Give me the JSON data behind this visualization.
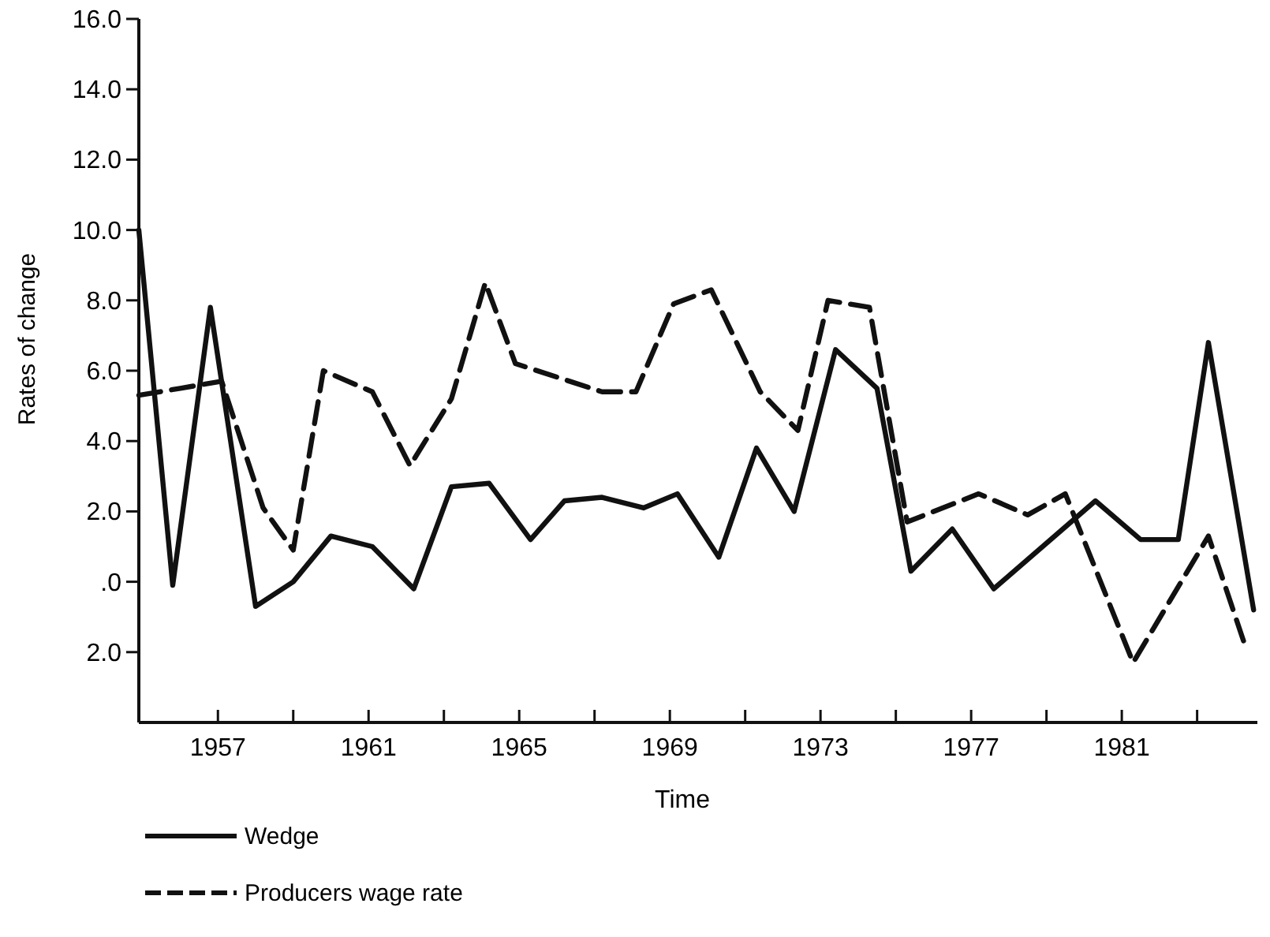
{
  "chart_data": {
    "type": "line",
    "xlabel": "Time",
    "ylabel": "Rates of change",
    "xlim": [
      1954.9,
      1984.6
    ],
    "ylim": [
      -4,
      16
    ],
    "xticks": [
      1957,
      {
        "value": 1959,
        "label": null
      },
      1961,
      {
        "value": 1963,
        "label": null
      },
      1965,
      {
        "value": 1967,
        "label": null
      },
      1969,
      {
        "value": 1971,
        "label": null
      },
      1973,
      {
        "value": 1975,
        "label": null
      },
      1977,
      {
        "value": 1979,
        "label": null
      },
      1981,
      {
        "value": 1983,
        "label": null
      }
    ],
    "yticks": [
      {
        "value": -2,
        "label": "2.0"
      },
      {
        "value": 0,
        "label": ".0"
      },
      {
        "value": 2,
        "label": "2.0"
      },
      {
        "value": 4,
        "label": "4.0"
      },
      {
        "value": 6,
        "label": "6.0"
      },
      {
        "value": 8,
        "label": "8.0"
      },
      {
        "value": 10,
        "label": "10.0"
      },
      {
        "value": 12,
        "label": "12.0"
      },
      {
        "value": 14,
        "label": "14.0"
      },
      {
        "value": 16,
        "label": "16.0"
      }
    ],
    "grid": false,
    "legend": "bottom",
    "marker": "none",
    "series": [
      {
        "name": "Wedge",
        "color": "#111111",
        "line_style": "solid",
        "x": [
          1954.9,
          1955.8,
          1956.8,
          1958.0,
          1959.0,
          1960.0,
          1961.1,
          1962.2,
          1963.2,
          1964.2,
          1965.3,
          1966.2,
          1967.2,
          1968.3,
          1969.2,
          1970.3,
          1971.3,
          1972.3,
          1973.4,
          1974.5,
          1975.4,
          1976.5,
          1977.6,
          1980.3,
          1981.5,
          1982.5,
          1983.3,
          1984.5
        ],
        "values": [
          10.0,
          -0.1,
          7.8,
          -0.7,
          0.0,
          1.3,
          1.0,
          -0.2,
          2.7,
          2.8,
          1.2,
          2.3,
          2.4,
          2.1,
          2.5,
          0.7,
          3.8,
          2.0,
          6.6,
          5.5,
          0.3,
          1.5,
          -0.2,
          2.3,
          1.2,
          1.2,
          6.8,
          -0.8
        ]
      },
      {
        "name": "Producers wage rate",
        "color": "#111111",
        "line_style": "dashed",
        "x": [
          1954.9,
          1956.0,
          1957.1,
          1958.2,
          1959.0,
          1959.8,
          1961.1,
          1962.1,
          1963.2,
          1964.1,
          1964.9,
          1967.2,
          1968.1,
          1969.1,
          1970.1,
          1971.4,
          1972.4,
          1973.2,
          1974.3,
          1975.3,
          1977.2,
          1978.5,
          1979.5,
          1981.3,
          1983.3,
          1984.3
        ],
        "values": [
          5.3,
          5.5,
          5.7,
          2.1,
          0.9,
          6.0,
          5.4,
          3.3,
          5.2,
          8.5,
          6.2,
          5.4,
          5.4,
          7.9,
          8.3,
          5.4,
          4.3,
          8.0,
          7.8,
          1.7,
          2.5,
          1.9,
          2.5,
          -2.3,
          1.3,
          -1.9
        ]
      }
    ]
  }
}
